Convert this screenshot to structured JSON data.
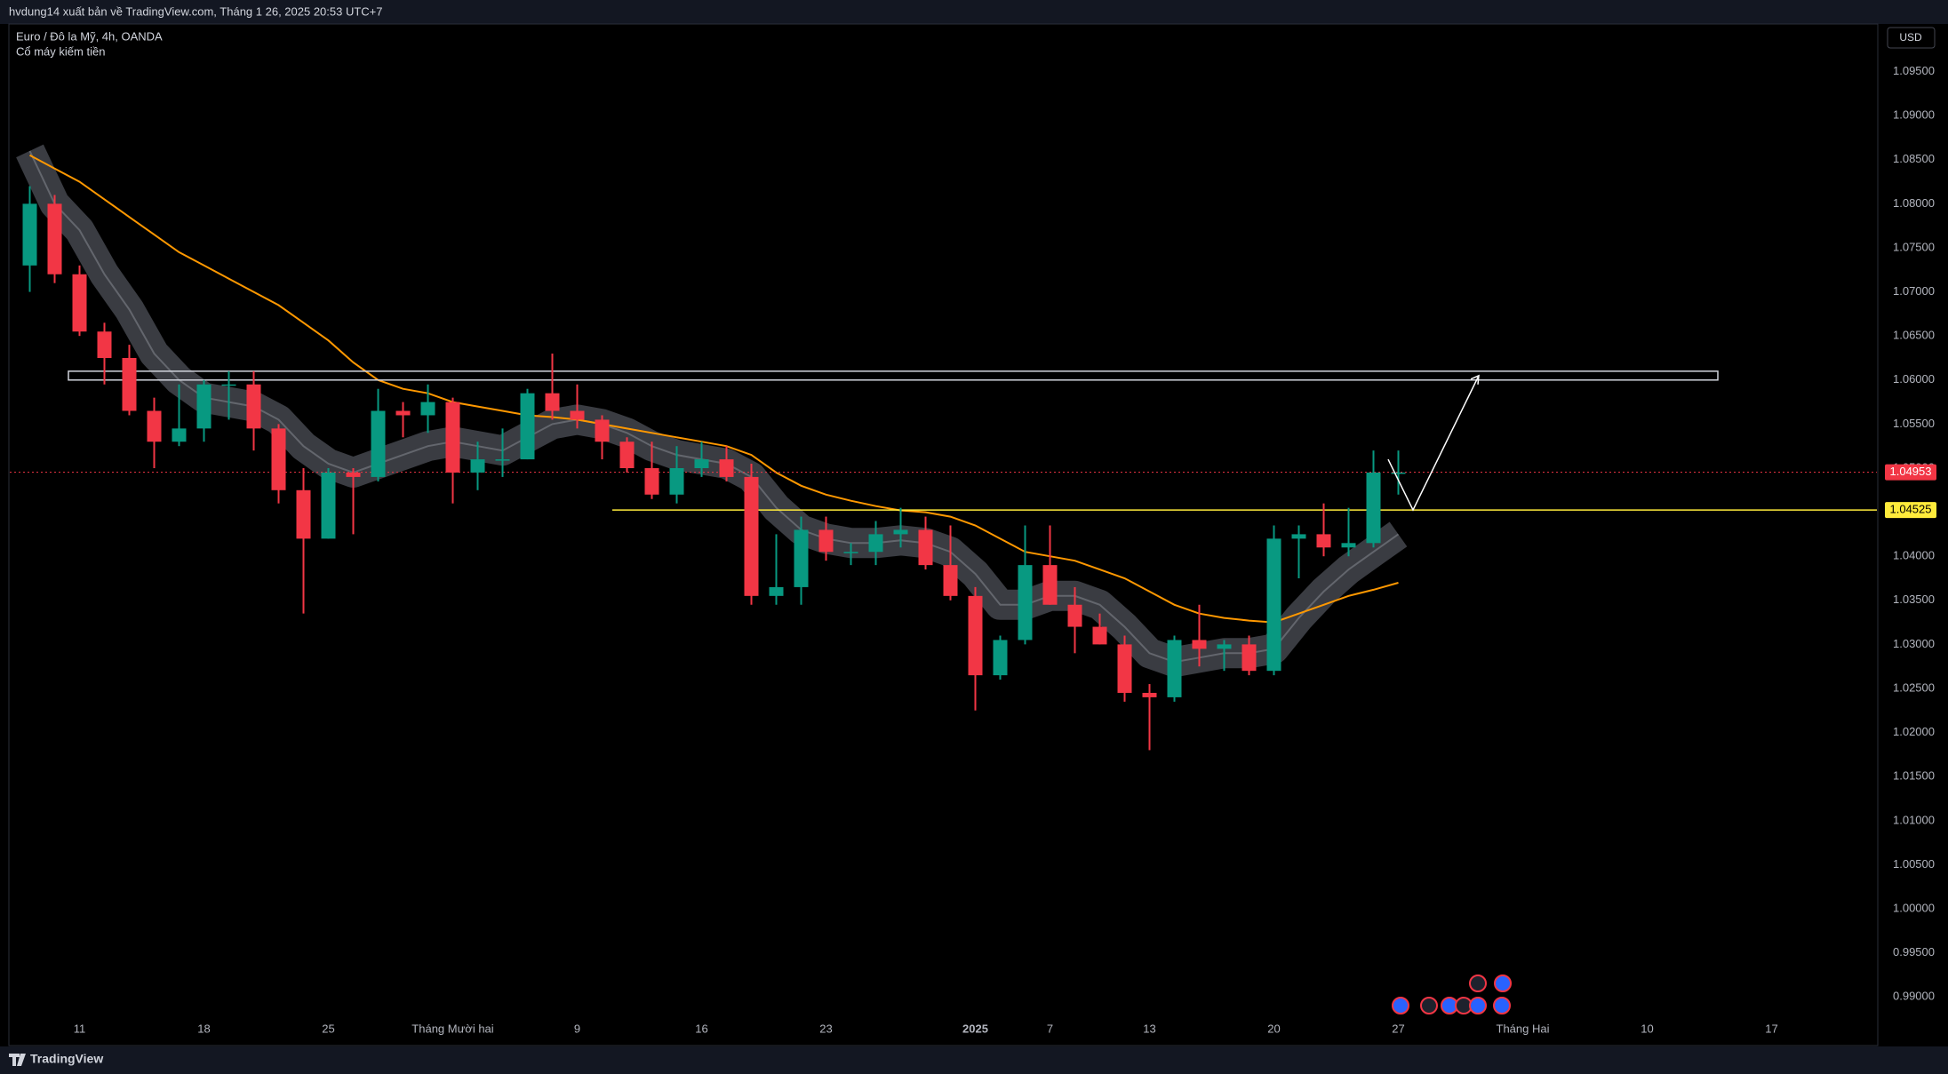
{
  "chart_data": {
    "type": "candlestick",
    "header": "hvdung14 xuất bản về TradingView.com, Tháng 1 26, 2025 20:53 UTC+7",
    "title": "Euro / Đô la Mỹ, 4h, OANDA",
    "indicator": "Cổ máy kiếm tiền",
    "currency": "USD",
    "brand": "TradingView",
    "categories": [
      null,
      null,
      "11",
      null,
      null,
      null,
      null,
      "18",
      null,
      null,
      null,
      null,
      "25",
      null,
      null,
      null,
      null,
      "Tháng Mười hai",
      null,
      null,
      null,
      null,
      "9",
      null,
      null,
      null,
      null,
      "16",
      null,
      null,
      null,
      null,
      "23",
      null,
      null,
      null,
      null,
      null,
      "2025",
      null,
      null,
      "7",
      null,
      null,
      null,
      "13",
      null,
      null,
      null,
      null,
      "20",
      null,
      null,
      null,
      null,
      "27",
      null,
      null,
      null,
      null,
      "Tháng Hai",
      null,
      null,
      null,
      null,
      "10",
      null,
      null,
      null,
      null,
      "17",
      null,
      null,
      null,
      null
    ],
    "open": [
      1.073,
      1.08,
      1.072,
      1.0655,
      1.0625,
      1.0565,
      1.053,
      1.0545,
      1.0595,
      1.0595,
      1.0545,
      1.0475,
      1.042,
      1.0495,
      1.049,
      1.0565,
      1.056,
      1.0575,
      1.0495,
      1.051,
      1.051,
      1.0585,
      1.0565,
      1.0555,
      1.053,
      1.05,
      1.047,
      1.05,
      1.051,
      1.049,
      1.0355,
      1.0365,
      1.043,
      1.0405,
      1.0405,
      1.0425,
      1.043,
      1.039,
      1.0355,
      1.0265,
      1.0305,
      1.039,
      1.0345,
      1.032,
      1.03,
      1.0245,
      1.024,
      1.0305,
      1.0295,
      1.03,
      1.027,
      1.042,
      1.0425,
      1.041,
      1.0415,
      1.0495,
      null,
      null,
      null,
      null,
      null,
      null,
      null,
      null,
      null,
      null,
      null,
      null,
      null,
      null,
      null,
      null,
      null,
      null,
      null
    ],
    "high": [
      1.082,
      1.081,
      1.073,
      1.0665,
      1.064,
      1.058,
      1.0595,
      1.06,
      1.061,
      1.061,
      1.055,
      1.05,
      1.05,
      1.05,
      1.059,
      1.0575,
      1.0595,
      1.058,
      1.053,
      1.0545,
      1.059,
      1.063,
      1.0595,
      1.056,
      1.0535,
      1.053,
      1.0525,
      1.053,
      1.0525,
      1.0505,
      1.0425,
      1.0445,
      1.0445,
      1.0415,
      1.044,
      1.0455,
      1.0445,
      1.0435,
      1.0365,
      1.031,
      1.0435,
      1.0435,
      1.0365,
      1.0335,
      1.031,
      1.0255,
      1.031,
      1.0345,
      1.0305,
      1.031,
      1.0435,
      1.0435,
      1.046,
      1.0455,
      1.052,
      1.052,
      null,
      null,
      null,
      null,
      null,
      null,
      null,
      null,
      null,
      null,
      null,
      null,
      null,
      null,
      null,
      null,
      null,
      null,
      null
    ],
    "low": [
      1.07,
      1.071,
      1.065,
      1.0595,
      1.056,
      1.05,
      1.0525,
      1.053,
      1.0555,
      1.052,
      1.046,
      1.0335,
      1.042,
      1.0425,
      1.0485,
      1.0535,
      1.054,
      1.046,
      1.0475,
      1.049,
      1.051,
      1.0555,
      1.0545,
      1.051,
      1.0495,
      1.0465,
      1.046,
      1.049,
      1.0485,
      1.0345,
      1.0345,
      1.0345,
      1.0395,
      1.039,
      1.039,
      1.041,
      1.0385,
      1.035,
      1.0225,
      1.026,
      1.03,
      1.0345,
      1.029,
      1.03,
      1.0235,
      1.018,
      1.0235,
      1.0275,
      1.027,
      1.0265,
      1.0265,
      1.0375,
      1.04,
      1.04,
      1.041,
      1.047,
      null,
      null,
      null,
      null,
      null,
      null,
      null,
      null,
      null,
      null,
      null,
      null,
      null,
      null,
      null,
      null,
      null,
      null,
      null
    ],
    "close": [
      1.08,
      1.072,
      1.0655,
      1.0625,
      1.0565,
      1.053,
      1.0545,
      1.0595,
      1.0595,
      1.0545,
      1.0475,
      1.042,
      1.0495,
      1.049,
      1.0565,
      1.056,
      1.0575,
      1.0495,
      1.051,
      1.051,
      1.0585,
      1.0565,
      1.0555,
      1.053,
      1.05,
      1.047,
      1.05,
      1.051,
      1.049,
      1.0355,
      1.0365,
      1.043,
      1.0405,
      1.0405,
      1.0425,
      1.043,
      1.039,
      1.0355,
      1.0265,
      1.0305,
      1.039,
      1.0345,
      1.032,
      1.03,
      1.0245,
      1.024,
      1.0305,
      1.0295,
      1.03,
      1.027,
      1.042,
      1.0425,
      1.041,
      1.0415,
      1.0495,
      1.0495,
      null,
      null,
      null,
      null,
      null,
      null,
      null,
      null,
      null,
      null,
      null,
      null,
      null,
      null,
      null,
      null,
      null,
      null,
      null
    ],
    "up_color": "#089981",
    "down_color": "#f23645",
    "ma": {
      "color": "#ff9800",
      "values": [
        1.0855,
        1.084,
        1.0825,
        1.0805,
        1.0785,
        1.0765,
        1.0745,
        1.073,
        1.0715,
        1.07,
        1.0685,
        1.0665,
        1.0645,
        1.062,
        1.06,
        1.059,
        1.0585,
        1.0575,
        1.057,
        1.0565,
        1.056,
        1.0558,
        1.0555,
        1.055,
        1.0545,
        1.054,
        1.0535,
        1.053,
        1.0525,
        1.0515,
        1.0495,
        1.048,
        1.047,
        1.0463,
        1.0457,
        1.0452,
        1.045,
        1.0445,
        1.0435,
        1.042,
        1.0405,
        1.04,
        1.0395,
        1.0385,
        1.0375,
        1.036,
        1.0345,
        1.0335,
        1.033,
        1.0327,
        1.0325,
        1.0335,
        1.0345,
        1.0355,
        1.0362,
        1.037,
        null,
        null,
        null,
        null,
        null,
        null,
        null,
        null,
        null,
        null,
        null,
        null,
        null,
        null,
        null,
        null,
        null,
        null,
        null
      ]
    },
    "band": {
      "color": "#6a6d78",
      "values": [
        1.086,
        1.08,
        1.077,
        1.072,
        1.068,
        1.063,
        1.06,
        1.058,
        1.0575,
        1.057,
        1.0555,
        1.0525,
        1.0505,
        1.0495,
        1.0505,
        1.0515,
        1.0525,
        1.053,
        1.0525,
        1.052,
        1.0535,
        1.055,
        1.0555,
        1.055,
        1.054,
        1.0525,
        1.0515,
        1.051,
        1.0505,
        1.049,
        1.0455,
        1.043,
        1.042,
        1.0415,
        1.0415,
        1.0418,
        1.0415,
        1.0405,
        1.038,
        1.0345,
        1.0345,
        1.0355,
        1.0355,
        1.0345,
        1.032,
        1.029,
        1.028,
        1.0285,
        1.029,
        1.029,
        1.0295,
        1.033,
        1.036,
        1.0385,
        1.0405,
        1.0425,
        null,
        null,
        null,
        null,
        null,
        null,
        null,
        null,
        null,
        null,
        null,
        null,
        null,
        null,
        null,
        null,
        null,
        null,
        null
      ]
    },
    "zone": {
      "low": 1.06,
      "high": 1.061,
      "color": "#d1d4dc"
    },
    "level": {
      "value": 1.04525,
      "label": "1.04525",
      "color": "#ffeb3b"
    },
    "last_price": {
      "value": 1.04953,
      "label": "1.04953",
      "color": "#f23645"
    },
    "projection": [
      1.051,
      1.04525,
      1.0605
    ],
    "ylim": [
      0.9872,
      1.1003
    ],
    "yticks": [
      {
        "value": 1.095,
        "label": "1.09500"
      },
      {
        "value": 1.09,
        "label": "1.09000"
      },
      {
        "value": 1.085,
        "label": "1.08500"
      },
      {
        "value": 1.08,
        "label": "1.08000"
      },
      {
        "value": 1.075,
        "label": "1.07500"
      },
      {
        "value": 1.07,
        "label": "1.07000"
      },
      {
        "value": 1.065,
        "label": "1.06500"
      },
      {
        "value": 1.06,
        "label": "1.06000"
      },
      {
        "value": 1.055,
        "label": "1.05500"
      },
      {
        "value": 1.05,
        "label": "1.05000"
      },
      {
        "value": 1.045,
        "label": "1.04500"
      },
      {
        "value": 1.04,
        "label": "1.04000"
      },
      {
        "value": 1.035,
        "label": "1.03500"
      },
      {
        "value": 1.03,
        "label": "1.03000"
      },
      {
        "value": 1.025,
        "label": "1.02500"
      },
      {
        "value": 1.02,
        "label": "1.02000"
      },
      {
        "value": 1.015,
        "label": "1.01500"
      },
      {
        "value": 1.01,
        "label": "1.01000"
      },
      {
        "value": 1.005,
        "label": "1.00500"
      },
      {
        "value": 1.0,
        "label": "1.00000"
      },
      {
        "value": 0.995,
        "label": "0.99500"
      },
      {
        "value": 0.99,
        "label": "0.99000"
      }
    ],
    "grid": false
  }
}
